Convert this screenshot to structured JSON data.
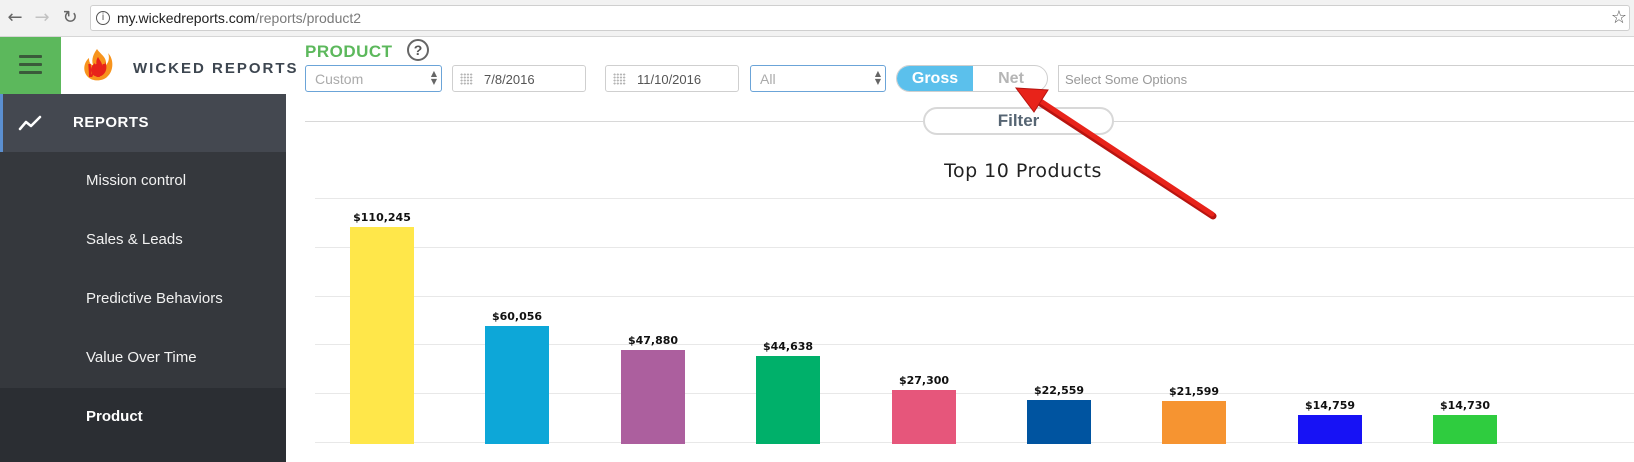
{
  "browser": {
    "url_host": "my.wickedreports.com",
    "url_path": "/reports/product2"
  },
  "brand": {
    "name": "WICKED REPORTS"
  },
  "sidebar": {
    "section_label": "REPORTS",
    "items": [
      {
        "label": "Mission control",
        "active": false
      },
      {
        "label": "Sales & Leads",
        "active": false
      },
      {
        "label": "Predictive Behaviors",
        "active": false
      },
      {
        "label": "Value Over Time",
        "active": false
      },
      {
        "label": "Product",
        "active": true
      }
    ]
  },
  "toolbar": {
    "title": "PRODUCT",
    "help": "?",
    "range_select": "Custom",
    "start_date": "7/8/2016",
    "end_date": "11/10/2016",
    "scope_select": "All",
    "gross_label": "Gross",
    "net_label": "Net",
    "gross_active": true,
    "options_placeholder": "Select Some Options",
    "filter_label": "Filter"
  },
  "colors": {
    "brand_green": "#5cb85c",
    "sidebar_bg": "#35383d",
    "toggle_active": "#5bc0ec",
    "annotation_arrow": "#e8231a"
  },
  "chart_data": {
    "type": "bar",
    "title": "Top 10 Products",
    "categories": [
      "",
      "",
      "",
      "",
      "",
      "",
      "",
      "",
      ""
    ],
    "values": [
      110245,
      60056,
      47880,
      44638,
      27300,
      22559,
      21599,
      14759,
      14730
    ],
    "value_labels": [
      "$110,245",
      "$60,056",
      "$47,880",
      "$44,638",
      "$27,300",
      "$22,559",
      "$21,599",
      "$14,759",
      "$14,730"
    ],
    "bar_colors": [
      "#ffe74a",
      "#0da7d8",
      "#ac5f9e",
      "#00b06a",
      "#e6567b",
      "#0054a0",
      "#f69431",
      "#1712f5",
      "#2fcc3f"
    ],
    "xlabel": "",
    "ylabel": "",
    "grid": true
  }
}
